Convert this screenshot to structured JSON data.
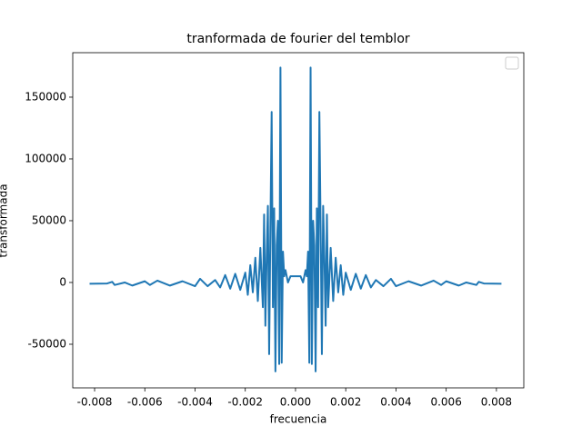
{
  "chart_data": {
    "type": "line",
    "title": "tranformada de fourier del temblor",
    "x_label": "frecuencia",
    "y_label": "transformada",
    "x": [
      -0.0082,
      -0.0075,
      -0.0073,
      -0.0072,
      -0.0068,
      -0.0065,
      -0.006,
      -0.0058,
      -0.0055,
      -0.005,
      -0.0045,
      -0.004,
      -0.0038,
      -0.0035,
      -0.0032,
      -0.003,
      -0.0028,
      -0.0026,
      -0.0024,
      -0.0022,
      -0.002,
      -0.0019,
      -0.0018,
      -0.0017,
      -0.0016,
      -0.0015,
      -0.0014,
      -0.0013,
      -0.00125,
      -0.0012,
      -0.00115,
      -0.0011,
      -0.00105,
      -0.001,
      -0.00095,
      -0.0009,
      -0.00085,
      -0.0008,
      -0.00075,
      -0.0007,
      -0.00065,
      -0.0006,
      -0.00055,
      -0.0005,
      -0.00045,
      -0.0004,
      -0.0003,
      -0.0002,
      0,
      0.0002,
      0.0003,
      0.0004,
      0.00045,
      0.0005,
      0.00055,
      0.0006,
      0.00065,
      0.0007,
      0.00075,
      0.0008,
      0.00085,
      0.0009,
      0.00095,
      0.001,
      0.00105,
      0.0011,
      0.00115,
      0.0012,
      0.00125,
      0.0013,
      0.0014,
      0.0015,
      0.0016,
      0.0017,
      0.0018,
      0.0019,
      0.002,
      0.0022,
      0.0024,
      0.0026,
      0.0028,
      0.003,
      0.0032,
      0.0035,
      0.0038,
      0.004,
      0.0045,
      0.005,
      0.0055,
      0.0058,
      0.006,
      0.0065,
      0.0068,
      0.0072,
      0.0073,
      0.0075,
      0.0082
    ],
    "series": [
      {
        "name": "transformada",
        "color": "#1f77b4",
        "values": [
          -1000,
          -800,
          500,
          -2000,
          0,
          -2500,
          1000,
          -2000,
          1500,
          -2500,
          1000,
          -3000,
          3000,
          -3000,
          2000,
          -4000,
          6000,
          -5000,
          7000,
          -6000,
          8000,
          -10000,
          14000,
          -8000,
          20000,
          -15000,
          28000,
          -20000,
          55000,
          -35000,
          20000,
          62000,
          -58000,
          44000,
          138000,
          -20000,
          60000,
          -72000,
          30000,
          50000,
          -66000,
          174000,
          -65000,
          25000,
          5000,
          10000,
          0,
          5000,
          5000,
          5000,
          0,
          10000,
          5000,
          25000,
          -65000,
          174000,
          -66000,
          50000,
          30000,
          -72000,
          60000,
          -20000,
          138000,
          44000,
          -58000,
          62000,
          20000,
          -35000,
          55000,
          -20000,
          28000,
          -15000,
          20000,
          -8000,
          14000,
          -10000,
          8000,
          -6000,
          7000,
          -5000,
          6000,
          -4000,
          2000,
          -3000,
          3000,
          -3000,
          1000,
          -2500,
          1500,
          -2000,
          1000,
          -2500,
          0,
          -2000,
          500,
          -800,
          -1000
        ]
      }
    ],
    "xlim": [
      -0.00887,
      0.00909
    ],
    "ylim": [
      -85300,
      186000
    ],
    "xticks": [
      -0.008,
      -0.006,
      -0.004,
      -0.002,
      {
        "value": 0,
        "label": "0.000"
      },
      0.002,
      0.004,
      0.006,
      0.008
    ],
    "yticks": [
      -50000,
      0,
      50000,
      100000,
      150000
    ]
  }
}
